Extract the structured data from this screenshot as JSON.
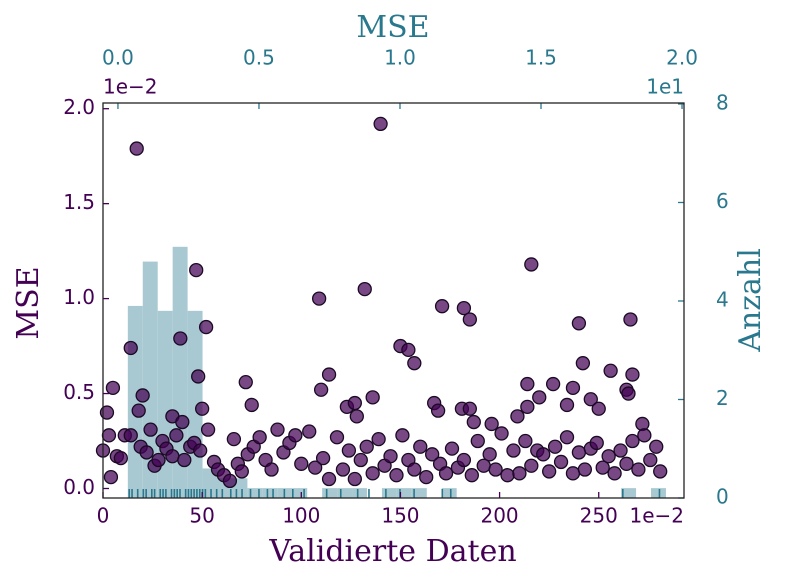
{
  "chart_data": [
    {
      "type": "scatter",
      "xlabel": "Validierte Daten",
      "ylabel": "MSE",
      "x_offset_label": "1e−2",
      "y_offset_label": "1e−2",
      "color": "#440154",
      "edge_color": "#1a0a24",
      "axis_color": "#440154",
      "xlim": [
        0,
        293
      ],
      "xticks": [
        0,
        50,
        100,
        150,
        200,
        250
      ],
      "ylim": [
        -0.05,
        2.03
      ],
      "yticks": [
        {
          "value": 0,
          "label": "0.0"
        },
        {
          "value": 0.5,
          "label": "0.5"
        },
        {
          "value": 1,
          "label": "1.0"
        },
        {
          "value": 1.5,
          "label": "1.5"
        },
        {
          "value": 2,
          "label": "2.0"
        }
      ],
      "x": [
        17,
        140,
        216,
        47,
        132,
        109,
        171,
        182,
        185,
        266,
        52,
        240,
        39,
        14,
        150,
        154,
        157,
        242,
        256,
        267,
        114,
        214,
        72,
        227,
        5,
        110,
        237,
        264,
        265,
        20,
        48,
        136,
        220,
        246,
        214,
        167,
        169,
        75,
        123,
        127,
        181,
        185,
        187,
        250,
        50,
        18,
        234,
        2,
        209,
        196,
        272,
        35,
        40,
        128,
        0,
        3,
        4,
        7,
        9,
        11,
        14,
        19,
        22,
        24,
        26,
        28,
        30,
        32,
        35,
        37,
        41,
        44,
        46,
        49,
        53,
        56,
        58,
        61,
        64,
        66,
        68,
        70,
        73,
        76,
        79,
        82,
        85,
        88,
        91,
        94,
        97,
        100,
        104,
        107,
        111,
        114,
        118,
        121,
        124,
        127,
        130,
        133,
        136,
        139,
        142,
        145,
        148,
        151,
        154,
        157,
        160,
        163,
        166,
        170,
        173,
        176,
        179,
        182,
        186,
        189,
        192,
        195,
        198,
        201,
        204,
        207,
        210,
        213,
        216,
        219,
        222,
        225,
        228,
        231,
        234,
        237,
        240,
        243,
        246,
        249,
        252,
        255,
        258,
        261,
        264,
        267,
        270,
        273,
        276,
        279,
        281
      ],
      "values": [
        1.79,
        1.92,
        1.18,
        1.15,
        1.05,
        1.0,
        0.96,
        0.95,
        0.89,
        0.89,
        0.85,
        0.87,
        0.79,
        0.74,
        0.75,
        0.73,
        0.66,
        0.66,
        0.62,
        0.6,
        0.6,
        0.55,
        0.56,
        0.55,
        0.53,
        0.52,
        0.53,
        0.52,
        0.5,
        0.49,
        0.59,
        0.48,
        0.48,
        0.47,
        0.43,
        0.45,
        0.41,
        0.44,
        0.43,
        0.45,
        0.42,
        0.42,
        0.35,
        0.42,
        0.42,
        0.41,
        0.44,
        0.4,
        0.38,
        0.34,
        0.34,
        0.38,
        0.35,
        0.38,
        0.2,
        0.28,
        0.06,
        0.17,
        0.16,
        0.28,
        0.28,
        0.22,
        0.19,
        0.31,
        0.12,
        0.15,
        0.25,
        0.21,
        0.17,
        0.28,
        0.15,
        0.22,
        0.24,
        0.2,
        0.31,
        0.14,
        0.1,
        0.07,
        0.04,
        0.26,
        0.13,
        0.09,
        0.18,
        0.22,
        0.27,
        0.15,
        0.1,
        0.31,
        0.19,
        0.24,
        0.28,
        0.13,
        0.3,
        0.11,
        0.16,
        0.05,
        0.27,
        0.1,
        0.2,
        0.05,
        0.15,
        0.22,
        0.08,
        0.26,
        0.12,
        0.17,
        0.07,
        0.28,
        0.15,
        0.1,
        0.22,
        0.06,
        0.18,
        0.13,
        0.08,
        0.21,
        0.11,
        0.15,
        0.07,
        0.25,
        0.12,
        0.18,
        0.1,
        0.29,
        0.07,
        0.2,
        0.08,
        0.25,
        0.12,
        0.2,
        0.18,
        0.09,
        0.22,
        0.14,
        0.27,
        0.08,
        0.19,
        0.1,
        0.21,
        0.24,
        0.11,
        0.17,
        0.08,
        0.2,
        0.13,
        0.25,
        0.1,
        0.28,
        0.15,
        0.22,
        0.09
      ]
    },
    {
      "type": "histogram",
      "xlabel": "MSE",
      "ylabel": "Anzahl",
      "x_offset_label": "1e1",
      "color": "#a8c9d1",
      "rug_color": "#2a788e",
      "axis_color": "#2a788e",
      "xlim": [
        -0.053,
        2.007
      ],
      "xticks": [
        {
          "value": 0,
          "label": "0.0"
        },
        {
          "value": 0.5,
          "label": "0.5"
        },
        {
          "value": 1,
          "label": "1.0"
        },
        {
          "value": 1.5,
          "label": "1.5"
        },
        {
          "value": 2,
          "label": "2.0"
        }
      ],
      "ylim": [
        0,
        8.02
      ],
      "yticks": [
        0,
        2,
        4,
        6,
        8
      ],
      "bins": [
        0.035,
        0.088,
        0.141,
        0.194,
        0.247,
        0.3,
        0.353,
        0.406,
        0.459,
        0.512,
        0.565,
        0.618,
        0.671,
        0.724,
        0.777,
        0.83,
        0.883,
        0.936,
        0.989,
        1.042,
        1.095,
        1.148,
        1.201,
        1.254,
        1.307,
        1.36,
        1.413,
        1.466,
        1.519,
        1.572,
        1.625,
        1.678,
        1.731,
        1.784,
        1.837,
        1.89,
        1.943,
        1.996
      ],
      "values": [
        3.9,
        4.8,
        3.8,
        5.1,
        3.8,
        0.6,
        0.4,
        0.4,
        0.2,
        0.2,
        0.2,
        0.2,
        0,
        0.2,
        0.2,
        0.2,
        0,
        0.2,
        0.2,
        0.2,
        0,
        0.2,
        0,
        0,
        0,
        0,
        0,
        0,
        0,
        0,
        0,
        0,
        0,
        0.2,
        0,
        0.2,
        0
      ],
      "rug": [
        0.04,
        0.05,
        0.07,
        0.09,
        0.1,
        0.12,
        0.13,
        0.15,
        0.16,
        0.17,
        0.19,
        0.2,
        0.21,
        0.22,
        0.24,
        0.25,
        0.26,
        0.27,
        0.28,
        0.29,
        0.3,
        0.31,
        0.33,
        0.35,
        0.37,
        0.4,
        0.42,
        0.44,
        0.47,
        0.5,
        0.53,
        0.55,
        0.59,
        0.62,
        0.66,
        0.74,
        0.79,
        0.85,
        0.89,
        0.95,
        1.0,
        1.05,
        1.15,
        1.18,
        1.79,
        1.92
      ]
    }
  ]
}
